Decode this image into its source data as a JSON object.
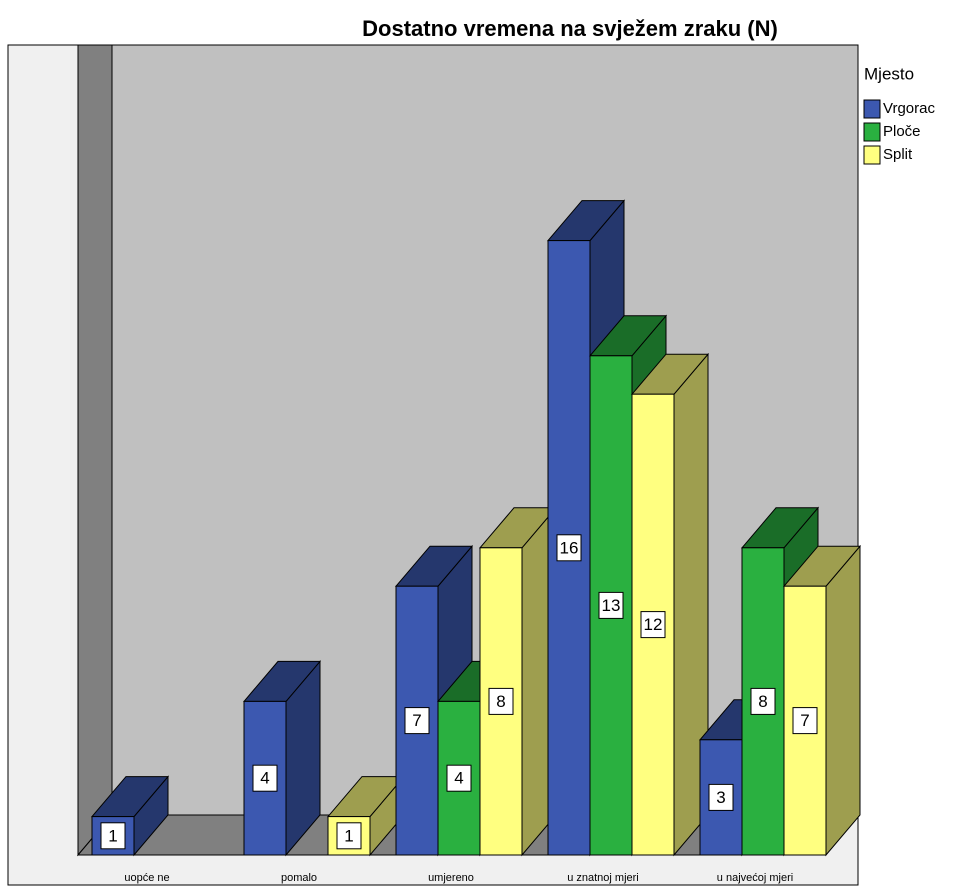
{
  "chart_data": {
    "type": "bar3d",
    "title": "Dostatno vremena na svježem zraku (N)",
    "legend_title": "Mjesto",
    "legend": "right",
    "categories": [
      "uopće ne",
      "pomalo",
      "umjereno",
      "u znatnoj mjeri",
      "u najvećoj mjeri"
    ],
    "series": [
      {
        "name": "Vrgorac",
        "color": "#3c58b0",
        "values": [
          1,
          4,
          7,
          16,
          3
        ]
      },
      {
        "name": "Ploče",
        "color": "#2ab040",
        "values": [
          null,
          null,
          4,
          13,
          8
        ]
      },
      {
        "name": "Split",
        "color": "#ffff80",
        "values": [
          null,
          1,
          8,
          12,
          7
        ]
      }
    ]
  }
}
